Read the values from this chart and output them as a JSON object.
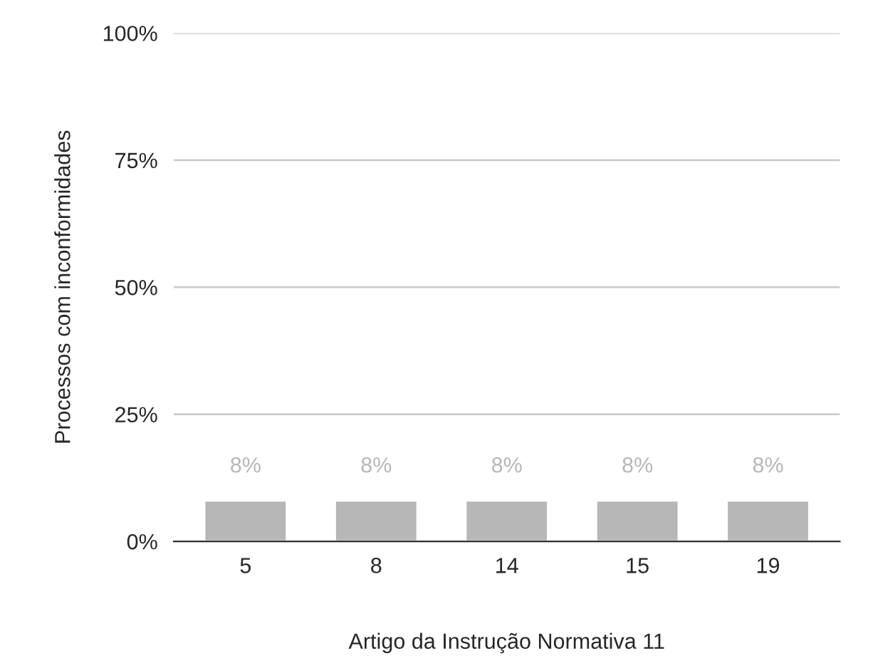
{
  "chart_data": {
    "type": "bar",
    "xlabel": "Artigo da Instrução Normativa 11",
    "ylabel": "Processos com inconformidades",
    "categories": [
      "5",
      "8",
      "14",
      "15",
      "19"
    ],
    "values": [
      8,
      8,
      8,
      8,
      8
    ],
    "value_labels": [
      "8%",
      "8%",
      "8%",
      "8%",
      "8%"
    ],
    "color": "#b7b7b7",
    "ylim": [
      0,
      100
    ],
    "yticks": [
      {
        "value": 0,
        "label": "0%"
      },
      {
        "value": 25,
        "label": "25%"
      },
      {
        "value": 50,
        "label": "50%"
      },
      {
        "value": 75,
        "label": "75%"
      },
      {
        "value": 100,
        "label": "100%"
      }
    ],
    "grid": "y",
    "legend": false
  }
}
